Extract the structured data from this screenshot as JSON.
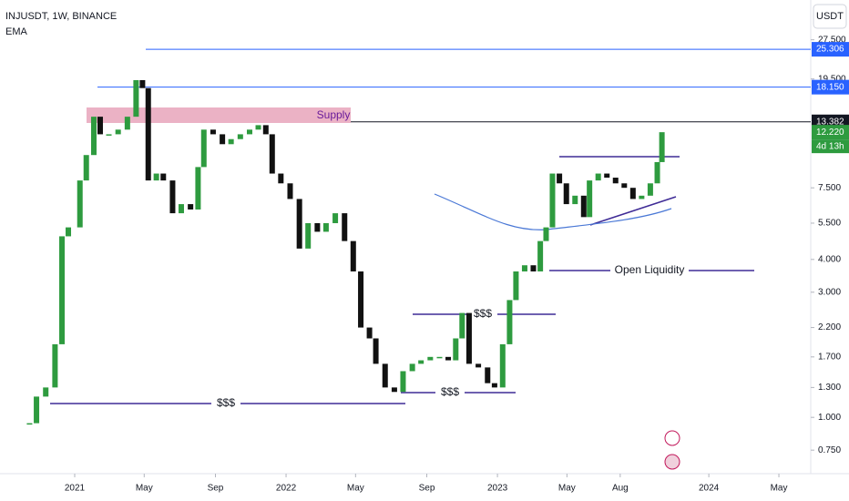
{
  "header": {
    "symbol": "INJUSDT, 1W, BINANCE",
    "indicator": "EMA",
    "currency": "USDT"
  },
  "chart_data": {
    "type": "candlestick",
    "log_scale": true,
    "up_color": "#2e9b3f",
    "down_color": "#111111",
    "x": [
      "2020-10-15",
      "2020-10-27",
      "2020-11-12",
      "2020-11-28",
      "2020-12-10",
      "2020-12-21",
      "2021-01-10",
      "2021-01-21",
      "2021-02-03",
      "2021-02-14",
      "2021-03-01",
      "2021-03-17",
      "2021-04-02",
      "2021-04-17",
      "2021-04-28",
      "2021-05-08",
      "2021-05-22",
      "2021-06-03",
      "2021-06-19",
      "2021-07-04",
      "2021-07-20",
      "2021-08-02",
      "2021-08-12",
      "2021-08-28",
      "2021-09-13",
      "2021-09-28",
      "2021-10-14",
      "2021-10-30",
      "2021-11-14",
      "2021-11-27",
      "2021-12-08",
      "2021-12-23",
      "2022-01-08",
      "2022-01-24",
      "2022-02-08",
      "2022-02-24",
      "2022-03-11",
      "2022-03-27",
      "2022-04-12",
      "2022-04-27",
      "2022-05-10",
      "2022-05-25",
      "2022-06-05",
      "2022-06-21",
      "2022-07-07",
      "2022-07-22",
      "2022-08-07",
      "2022-08-22",
      "2022-09-07",
      "2022-09-23",
      "2022-10-08",
      "2022-10-21",
      "2022-11-01",
      "2022-11-13",
      "2022-11-29",
      "2022-12-15",
      "2022-12-27",
      "2023-01-10",
      "2023-01-22",
      "2023-02-02",
      "2023-02-17",
      "2023-03-04",
      "2023-03-16",
      "2023-03-26",
      "2023-04-06",
      "2023-04-18",
      "2023-04-30",
      "2023-05-15",
      "2023-05-30",
      "2023-06-09",
      "2023-06-24",
      "2023-07-09",
      "2023-07-24",
      "2023-08-08",
      "2023-08-23",
      "2023-09-07",
      "2023-09-22",
      "2023-10-04",
      "2023-10-12"
    ],
    "values": [
      0.95,
      1.2,
      1.3,
      1.9,
      4.9,
      5.3,
      8,
      10,
      14,
      12,
      12,
      12.5,
      14,
      19.3,
      18,
      8,
      8.5,
      8,
      6,
      6.5,
      6.2,
      9,
      12.5,
      12,
      11,
      11.5,
      12,
      12.5,
      13,
      12,
      8.5,
      7.8,
      6.8,
      4.4,
      5.5,
      5.1,
      5.5,
      6,
      4.7,
      3.6,
      2.2,
      2.0,
      1.6,
      1.3,
      1.25,
      1.5,
      1.6,
      1.65,
      1.7,
      1.7,
      1.65,
      2.0,
      2.5,
      1.6,
      1.55,
      1.35,
      1.3,
      1.9,
      2.8,
      3.6,
      3.8,
      3.6,
      4.7,
      5.3,
      8.5,
      7.8,
      6.5,
      7.0,
      5.8,
      8,
      8.5,
      8.2,
      7.8,
      7.5,
      6.8,
      7.0,
      7.8,
      9.4,
      12.22
    ],
    "xlim": [
      "2020-08-25",
      "2024-06-25"
    ],
    "xticks": [
      {
        "value": "2021-01-01",
        "label": "2021"
      },
      {
        "value": "2021-05-01",
        "label": "May"
      },
      {
        "value": "2021-09-01",
        "label": "Sep"
      },
      {
        "value": "2022-01-01",
        "label": "2022"
      },
      {
        "value": "2022-05-01",
        "label": "May"
      },
      {
        "value": "2022-09-01",
        "label": "Sep"
      },
      {
        "value": "2023-01-01",
        "label": "2023"
      },
      {
        "value": "2023-05-01",
        "label": "May"
      },
      {
        "value": "2023-08-01",
        "label": "Aug"
      },
      {
        "value": "2024-01-01",
        "label": "2024"
      },
      {
        "value": "2024-05-01",
        "label": "May"
      }
    ],
    "ylim": [
      0.61,
      39
    ],
    "yticks": [
      {
        "value": 27.5,
        "label": "27.500"
      },
      {
        "value": 19.5,
        "label": "19.500"
      },
      {
        "value": 7.5,
        "label": "7.500"
      },
      {
        "value": 5.5,
        "label": "5.500"
      },
      {
        "value": 4,
        "label": "4.000"
      },
      {
        "value": 3,
        "label": "3.000"
      },
      {
        "value": 2.2,
        "label": "2.200"
      },
      {
        "value": 1.7,
        "label": "1.700"
      },
      {
        "value": 1.3,
        "label": "1.300"
      },
      {
        "value": 1,
        "label": "1.000"
      },
      {
        "value": 0.75,
        "label": "0.750"
      }
    ],
    "levels": [
      {
        "value": 25.306,
        "label": "25.306",
        "color": "#2962ff"
      },
      {
        "value": 18.15,
        "label": "18.150",
        "color": "#2962ff"
      },
      {
        "value": 13.382,
        "label": "13.382",
        "color": "#131722"
      },
      {
        "value": 12.22,
        "label": "12.220",
        "color": "#2e9b3f"
      }
    ],
    "countdown": "4d 13h",
    "annotations": {
      "supply": "Supply",
      "liq1": "$$$",
      "liq2": "$$$",
      "liq3": "$$$",
      "open": "Open Liquidity"
    }
  }
}
